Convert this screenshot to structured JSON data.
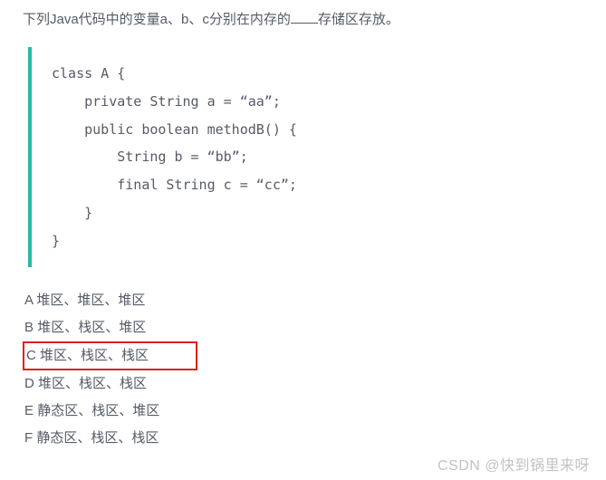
{
  "question": {
    "prefix": "下列Java代码中的变量a、b、c分别在内存的",
    "suffix": "存储区存放。"
  },
  "code_block": {
    "border_color": "#2ab8a3",
    "font_family": "Consolas, Menlo, monospace",
    "font_size": 15,
    "line_height": 2.05,
    "lines": [
      "class A {",
      "    private String a = “aa”;",
      "    public boolean methodB() {",
      "        String b = “bb”;",
      "        final String c = “cc”;",
      "    }",
      "}"
    ]
  },
  "options": {
    "selected_index": 2,
    "highlight_border_color": "#e02020",
    "items": [
      {
        "letter": "A",
        "text": "堆区、堆区、堆区"
      },
      {
        "letter": "B",
        "text": "堆区、栈区、堆区"
      },
      {
        "letter": "C",
        "text": "堆区、栈区、栈区"
      },
      {
        "letter": "D",
        "text": "堆区、栈区、栈区"
      },
      {
        "letter": "E",
        "text": "静态区、栈区、堆区"
      },
      {
        "letter": "F",
        "text": "静态区、栈区、栈区"
      }
    ]
  },
  "watermark": "CSDN @快到锅里来呀",
  "colors": {
    "text": "#555b66",
    "background": "#ffffff"
  }
}
